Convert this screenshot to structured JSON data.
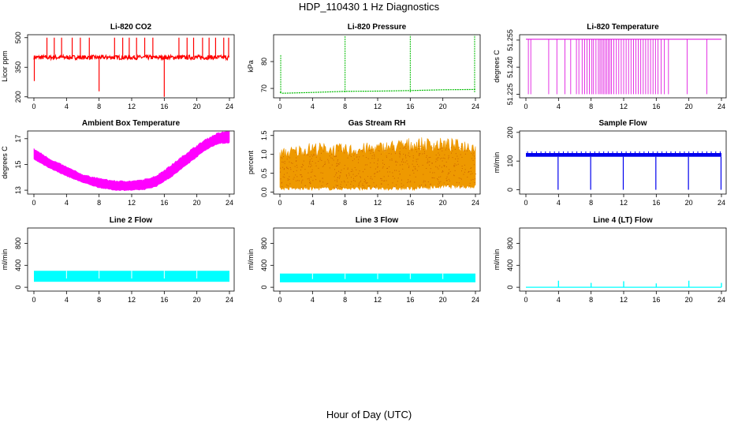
{
  "figure": {
    "title": "HDP_110430  1 Hz Diagnostics",
    "xlabel": "Hour of Day (UTC)"
  },
  "chart_data": [
    {
      "type": "line",
      "title": "Li-820 CO2",
      "ylabel": "Licor ppm",
      "color": "#ff0000",
      "xlim": [
        0,
        24
      ],
      "ylim": [
        195,
        515
      ],
      "xticks": [
        "0",
        "4",
        "8",
        "12",
        "16",
        "20",
        "24"
      ],
      "yticks": [
        200,
        350,
        500
      ],
      "baseline": 400,
      "spikes": [
        {
          "x": 0.05,
          "y": 280
        },
        {
          "x": 1.6,
          "y": 500
        },
        {
          "x": 2.5,
          "y": 500
        },
        {
          "x": 3.4,
          "y": 500
        },
        {
          "x": 4.7,
          "y": 500
        },
        {
          "x": 5.7,
          "y": 500
        },
        {
          "x": 6.8,
          "y": 500
        },
        {
          "x": 8.0,
          "y": 228
        },
        {
          "x": 9.9,
          "y": 500
        },
        {
          "x": 10.9,
          "y": 500
        },
        {
          "x": 11.7,
          "y": 500
        },
        {
          "x": 12.6,
          "y": 500
        },
        {
          "x": 13.6,
          "y": 500
        },
        {
          "x": 14.6,
          "y": 500
        },
        {
          "x": 16.0,
          "y": 200
        },
        {
          "x": 17.8,
          "y": 500
        },
        {
          "x": 18.8,
          "y": 500
        },
        {
          "x": 19.6,
          "y": 500
        },
        {
          "x": 20.7,
          "y": 500
        },
        {
          "x": 21.5,
          "y": 500
        },
        {
          "x": 22.3,
          "y": 500
        },
        {
          "x": 23.3,
          "y": 500
        },
        {
          "x": 23.9,
          "y": 500
        }
      ]
    },
    {
      "type": "line",
      "title": "Li-820 Pressure",
      "ylabel": "kPa",
      "color": "#00bb00",
      "xlim": [
        0,
        24
      ],
      "ylim": [
        66.5,
        90
      ],
      "xticks": [
        "0",
        "4",
        "8",
        "12",
        "16",
        "20",
        "24"
      ],
      "yticks": [
        70,
        80
      ],
      "series": {
        "x": [
          0,
          0.3,
          4,
          8,
          12,
          16,
          20,
          24
        ],
        "y": [
          68.5,
          68.2,
          68.5,
          68.9,
          69.0,
          69.2,
          69.5,
          69.6
        ]
      },
      "spikes": [
        {
          "x": 0.1,
          "y": 82.5
        },
        {
          "x": 8.0,
          "y": 89.5
        },
        {
          "x": 16.0,
          "y": 89.8
        },
        {
          "x": 23.9,
          "y": 89.8
        }
      ]
    },
    {
      "type": "step",
      "title": "Li-820 Temperature",
      "ylabel": "degrees C",
      "color": "#dd00dd",
      "xlim": [
        0,
        24
      ],
      "ylim": [
        51.223,
        51.258
      ],
      "xticks": [
        "0",
        "4",
        "8",
        "12",
        "16",
        "20",
        "24"
      ],
      "yticks": [
        51.225,
        51.24,
        51.255
      ],
      "ytick_labels": [
        "51.225",
        "51.240",
        "51.255"
      ],
      "high": 51.2555,
      "low": 51.225,
      "drops": [
        0.3,
        0.6,
        2.8,
        3.8,
        4.8,
        5.5,
        6.2,
        6.5,
        6.9,
        7.2,
        7.5,
        7.8,
        8.1,
        8.3,
        8.6,
        8.9,
        9.1,
        9.3,
        9.5,
        9.7,
        9.9,
        10.1,
        10.3,
        10.5,
        10.8,
        11.1,
        11.4,
        11.7,
        12.0,
        12.3,
        12.6,
        12.9,
        13.2,
        13.5,
        13.8,
        14.1,
        14.4,
        14.7,
        15.0,
        15.3,
        15.6,
        15.9,
        16.2,
        16.6,
        17.0,
        17.5,
        19.8,
        22.2
      ]
    },
    {
      "type": "band",
      "title": "Ambient Box Temperature",
      "ylabel": "degrees C",
      "color": "#ff00ff",
      "xlim": [
        0,
        24
      ],
      "ylim": [
        12.7,
        17.6
      ],
      "xticks": [
        "0",
        "4",
        "8",
        "12",
        "16",
        "20",
        "24"
      ],
      "yticks": [
        13,
        15,
        17
      ],
      "x": [
        0,
        2,
        4,
        6,
        8,
        10,
        12,
        13.5,
        15,
        17,
        19,
        21,
        22.5,
        24
      ],
      "lower": [
        15.4,
        14.7,
        14.1,
        13.6,
        13.2,
        13.0,
        13.0,
        13.05,
        13.3,
        14.1,
        15.1,
        16.1,
        16.6,
        16.7
      ],
      "upper": [
        16.2,
        15.4,
        14.8,
        14.2,
        13.9,
        13.7,
        13.7,
        13.8,
        14.1,
        15.0,
        16.0,
        16.9,
        17.4,
        17.6
      ]
    },
    {
      "type": "band",
      "title": "Gas Stream RH",
      "ylabel": "percent",
      "color": "#ee9900",
      "xlim": [
        0,
        24
      ],
      "ylim": [
        -0.05,
        1.62
      ],
      "xticks": [
        "0",
        "4",
        "8",
        "12",
        "16",
        "20",
        "24"
      ],
      "yticks": [
        0.0,
        0.5,
        1.0,
        1.5
      ],
      "ytick_labels": [
        "0.0",
        "0.5",
        "1.0",
        "1.5"
      ],
      "x": [
        0,
        4,
        8,
        12,
        16,
        20,
        24
      ],
      "lower": [
        0.1,
        0.1,
        0.1,
        0.1,
        0.1,
        0.15,
        0.15
      ],
      "upper": [
        1.0,
        1.15,
        1.1,
        1.15,
        1.25,
        1.25,
        1.2
      ]
    },
    {
      "type": "line",
      "title": "Sample Flow",
      "ylabel": "ml/min",
      "color": "#0000ee",
      "xlim": [
        0,
        24
      ],
      "ylim": [
        -15,
        205
      ],
      "xticks": [
        "0",
        "4",
        "8",
        "12",
        "16",
        "20",
        "24"
      ],
      "yticks": [
        0,
        100,
        200
      ],
      "baseline": 115,
      "top": 128,
      "dips": [
        3.95,
        7.95,
        11.95,
        15.95,
        19.95,
        23.95
      ],
      "dip_value": 0
    },
    {
      "type": "band",
      "title": "Line 2 Flow",
      "ylabel": "ml/min",
      "color": "#00ffff",
      "xlim": [
        0,
        24
      ],
      "ylim": [
        -70,
        1080
      ],
      "xticks": [
        "0",
        "4",
        "8",
        "12",
        "16",
        "20",
        "24"
      ],
      "yticks": [
        0,
        400,
        800
      ],
      "x": [
        0,
        24
      ],
      "lower": [
        100,
        100
      ],
      "upper": [
        300,
        300
      ],
      "gaps": [
        4,
        8,
        12,
        16,
        20
      ]
    },
    {
      "type": "band",
      "title": "Line 3 Flow",
      "ylabel": "ml/min",
      "color": "#00ffff",
      "xlim": [
        0,
        24
      ],
      "ylim": [
        -70,
        1080
      ],
      "xticks": [
        "0",
        "4",
        "8",
        "12",
        "16",
        "20",
        "24"
      ],
      "yticks": [
        0,
        400,
        800
      ],
      "x": [
        0,
        24
      ],
      "lower": [
        90,
        90
      ],
      "upper": [
        250,
        250
      ],
      "gaps": [
        4,
        8,
        12,
        16,
        20
      ]
    },
    {
      "type": "line",
      "title": "Line 4 (LT) Flow",
      "ylabel": "ml/min",
      "color": "#00ffff",
      "xlim": [
        0,
        24
      ],
      "ylim": [
        -70,
        1080
      ],
      "xticks": [
        "0",
        "4",
        "8",
        "12",
        "16",
        "20",
        "24"
      ],
      "yticks": [
        0,
        400,
        800
      ],
      "baseline": 0,
      "spikes": [
        {
          "x": 4,
          "y": 120
        },
        {
          "x": 8,
          "y": 80
        },
        {
          "x": 12,
          "y": 110
        },
        {
          "x": 16,
          "y": 70
        },
        {
          "x": 20,
          "y": 120
        },
        {
          "x": 24,
          "y": 80
        }
      ]
    }
  ]
}
